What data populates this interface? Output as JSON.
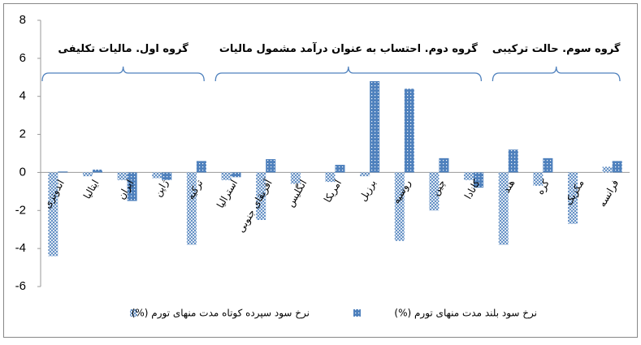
{
  "chart_data": {
    "type": "bar",
    "categories": [
      "اندونزی",
      "ایتالیا",
      "ایران",
      "ژاپن",
      "ترکیه",
      "استرالیا",
      "آفریقای جنوبی",
      "انگلیس",
      "امریکا",
      "برزیل",
      "روسیه",
      "چین",
      "کانادا",
      "هند",
      "کره",
      "مکزیک",
      "فرانسه"
    ],
    "series": [
      {
        "name": "نرخ  سود سپرده کوتاه مدت منهای تورم (%)",
        "color": "#4f81bd",
        "pattern": "crosshatch",
        "values": [
          -4.4,
          -0.2,
          -0.4,
          -0.3,
          -3.8,
          -0.4,
          -2.5,
          -0.6,
          -0.5,
          -0.2,
          -3.6,
          -2.0,
          -0.4,
          -3.8,
          -0.7,
          -2.7,
          0.3
        ]
      },
      {
        "name": "نرخ سود بلند مدت منهای تورم (%)",
        "color": "#4f81bd",
        "pattern": "dots",
        "values": [
          0.05,
          0.15,
          -1.5,
          -0.4,
          0.6,
          -0.25,
          0.7,
          null,
          0.4,
          4.8,
          4.4,
          0.75,
          -0.8,
          1.2,
          0.75,
          null,
          0.6
        ]
      }
    ],
    "annotations": [
      "گروه اول. مالیات تکلیفی",
      "گروه دوم. احتساب به عنوان درآمد مشمول مالیات",
      "گروه سوم. حالت ترکیبی"
    ],
    "ylim": [
      -6,
      8
    ],
    "yticks": [
      -6,
      -4,
      -2,
      0,
      2,
      4,
      6,
      8
    ],
    "grid": false,
    "legend": "bottom"
  }
}
